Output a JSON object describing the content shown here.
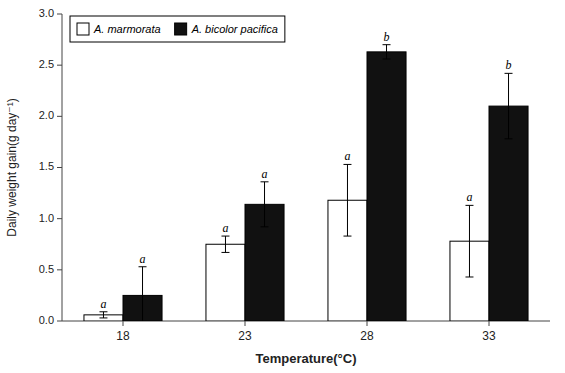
{
  "chart_data": {
    "type": "bar",
    "categories": [
      "18",
      "23",
      "28",
      "33"
    ],
    "xlabel": "Temperature(°C)",
    "ylabel": "Daily weight gain(g day⁻¹)",
    "series": [
      {
        "name": "A. marmorata",
        "color": "#ffffff",
        "values": [
          0.06,
          0.75,
          1.18,
          0.78
        ],
        "errors": [
          0.03,
          0.08,
          0.35,
          0.35
        ],
        "annotations": [
          "a",
          "a",
          "a",
          "a"
        ]
      },
      {
        "name": "A. bicolor pacifica",
        "color": "#111111",
        "values": [
          0.25,
          1.14,
          2.63,
          2.1
        ],
        "errors": [
          0.28,
          0.22,
          0.07,
          0.32
        ],
        "annotations": [
          "a",
          "a",
          "b",
          "b"
        ]
      }
    ],
    "ylim": [
      0,
      3.0
    ],
    "yticks": [
      {
        "value": 0,
        "label": "0.0"
      },
      0.5,
      {
        "value": 1,
        "label": "1.0"
      },
      1.5,
      {
        "value": 2,
        "label": "2.0"
      },
      2.5,
      {
        "value": 3,
        "label": "3.0"
      }
    ],
    "legend": "upper left",
    "grid": false
  }
}
